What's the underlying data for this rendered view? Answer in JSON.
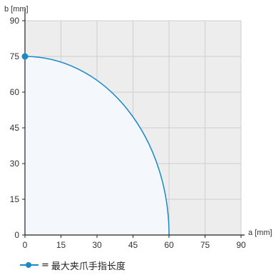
{
  "chart_data": {
    "type": "area",
    "xlabel": "a [mm]",
    "ylabel": "b [mm]",
    "xlim": [
      0,
      90
    ],
    "ylim": [
      0,
      90
    ],
    "xticks": [
      0,
      15,
      30,
      45,
      60,
      75,
      90
    ],
    "yticks": [
      0,
      15,
      30,
      45,
      60,
      75,
      90
    ],
    "grid": true,
    "series": [
      {
        "name": "最大夹爪手指长度",
        "shape": "quarter-ellipse",
        "a_max": 60,
        "b_max": 75,
        "marker": {
          "x": 0,
          "y": 75
        }
      }
    ],
    "legend": {
      "position": "bottom-left",
      "prefix": "=",
      "label": "最大夹爪手指长度"
    }
  },
  "colors": {
    "line": "#1a88c9",
    "fill": "#f4f8fc",
    "background": "#ededed",
    "grid": "#cfcfcf",
    "axis": "#222222"
  }
}
